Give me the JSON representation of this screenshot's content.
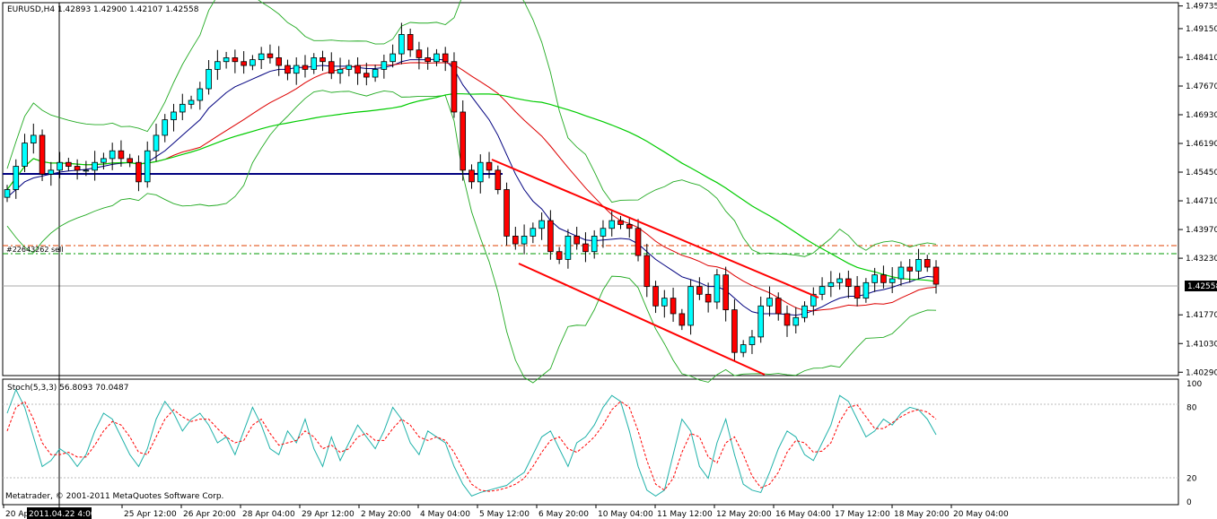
{
  "window": {
    "symbol_header": "EURUSD,H4  1.42893 1.42900 1.42107 1.42558",
    "stoch_header": "Stoch(5,3,3) 56.8093 70.0487",
    "copyright": "Metatrader, © 2001-2011 MetaQuotes Software Corp.",
    "order_label": "#22643262 sell",
    "current_time_label": "2011.04.22 4:00"
  },
  "colors": {
    "bull": "#00ffff",
    "bear": "#ff0000",
    "ma_fast": "#00007f",
    "ma_mid": "#dd0000",
    "ma_slow": "#00cc00",
    "bands": "#22aa22",
    "channel": "#ff0000",
    "support_line": "#000080",
    "stoch_main": "#20b2aa",
    "stoch_signal": "#ff0000"
  },
  "chart_data": [
    {
      "type": "candlestick",
      "ylim": [
        1.4025,
        1.4975
      ],
      "y_ticks": [
        "1.49735",
        "1.49150",
        "1.48410",
        "1.47670",
        "1.46930",
        "1.46190",
        "1.45450",
        "1.44710",
        "1.43970",
        "1.43230",
        "1.42558",
        "1.41770",
        "1.41030",
        "1.40290"
      ],
      "current_price": "1.42558",
      "x_tick_labels": [
        "20 Apr 2011",
        "22 Apr 04:00",
        "25 Apr 12:00",
        "26 Apr 20:00",
        "28 Apr 04:00",
        "29 Apr 12:00",
        "2 May 20:00",
        "4 May 04:00",
        "5 May 12:00",
        "6 May 20:00",
        "10 May 04:00",
        "11 May 12:00",
        "12 May 20:00",
        "16 May 04:00",
        "17 May 12:00",
        "18 May 20:00",
        "20 May 04:00"
      ],
      "closes": [
        1.45,
        1.456,
        1.462,
        1.464,
        1.454,
        1.455,
        1.457,
        1.456,
        1.455,
        1.455,
        1.457,
        1.458,
        1.46,
        1.458,
        1.457,
        1.452,
        1.46,
        1.464,
        1.468,
        1.47,
        1.472,
        1.473,
        1.476,
        1.481,
        1.483,
        1.484,
        1.483,
        1.482,
        1.4835,
        1.485,
        1.484,
        1.482,
        1.48,
        1.482,
        1.481,
        1.484,
        1.483,
        1.48,
        1.481,
        1.482,
        1.48,
        1.479,
        1.481,
        1.483,
        1.485,
        1.49,
        1.486,
        1.484,
        1.483,
        1.485,
        1.483,
        1.47,
        1.455,
        1.452,
        1.457,
        1.455,
        1.45,
        1.438,
        1.436,
        1.438,
        1.44,
        1.442,
        1.434,
        1.432,
        1.438,
        1.436,
        1.434,
        1.438,
        1.44,
        1.442,
        1.441,
        1.44,
        1.433,
        1.425,
        1.42,
        1.422,
        1.418,
        1.415,
        1.425,
        1.423,
        1.421,
        1.428,
        1.419,
        1.408,
        1.41,
        1.412,
        1.42,
        1.422,
        1.418,
        1.415,
        1.417,
        1.42,
        1.423,
        1.425,
        1.426,
        1.427,
        1.425,
        1.422,
        1.426,
        1.428,
        1.426,
        1.427,
        1.43,
        1.429,
        1.432,
        1.43,
        1.4256
      ],
      "ma_fast": [
        1.448,
        1.45,
        1.452,
        1.453,
        1.4535,
        1.454,
        1.4545,
        1.4548,
        1.455,
        1.4552,
        1.4556,
        1.456,
        1.4565,
        1.4568,
        1.457,
        1.4565,
        1.457,
        1.4585,
        1.46,
        1.462,
        1.464,
        1.466,
        1.468,
        1.471,
        1.473,
        1.475,
        1.4765,
        1.4775,
        1.4785,
        1.4795,
        1.4805,
        1.481,
        1.481,
        1.4815,
        1.4815,
        1.4818,
        1.482,
        1.4818,
        1.4818,
        1.4818,
        1.4815,
        1.4812,
        1.4812,
        1.4815,
        1.482,
        1.483,
        1.4835,
        1.4835,
        1.4835,
        1.4836,
        1.4834,
        1.481,
        1.477,
        1.474,
        1.471,
        1.468,
        1.464,
        1.459,
        1.454,
        1.45,
        1.447,
        1.445,
        1.442,
        1.44,
        1.439,
        1.438,
        1.437,
        1.4368,
        1.437,
        1.4372,
        1.4374,
        1.4372,
        1.436,
        1.434,
        1.432,
        1.4305,
        1.429,
        1.4275,
        1.4268,
        1.426,
        1.425,
        1.425,
        1.424,
        1.422,
        1.42,
        1.4185,
        1.418,
        1.418,
        1.418,
        1.4178,
        1.4176,
        1.418,
        1.4188,
        1.4198,
        1.421,
        1.422,
        1.4225,
        1.4225,
        1.423,
        1.4238,
        1.4242,
        1.4248,
        1.4256,
        1.4262,
        1.427,
        1.4276,
        1.4274
      ]
    },
    {
      "type": "line",
      "title": "Stoch(5,3,3) 56.8093 70.0487",
      "ylim": [
        0,
        100
      ],
      "levels": [
        20,
        80
      ],
      "y_ticks": [
        "100",
        "80",
        "20",
        "0"
      ],
      "series": [
        {
          "values": [
            75,
            95,
            80,
            55,
            30,
            35,
            45,
            40,
            30,
            40,
            60,
            75,
            70,
            55,
            40,
            30,
            45,
            70,
            85,
            75,
            60,
            70,
            75,
            65,
            50,
            55,
            40,
            60,
            80,
            65,
            45,
            40,
            60,
            50,
            70,
            45,
            30,
            55,
            35,
            50,
            65,
            55,
            45,
            60,
            80,
            70,
            50,
            40,
            60,
            55,
            50,
            30,
            15,
            5,
            8,
            10,
            12,
            14,
            20,
            25,
            40,
            55,
            60,
            45,
            30,
            50,
            55,
            65,
            80,
            90,
            85,
            60,
            30,
            10,
            5,
            10,
            40,
            70,
            60,
            30,
            20,
            50,
            70,
            40,
            15,
            10,
            8,
            25,
            45,
            60,
            55,
            40,
            35,
            50,
            65,
            90,
            85,
            70,
            55,
            60,
            70,
            65,
            75,
            80,
            78,
            70,
            56.8
          ]
        },
        {
          "values": [
            60,
            80,
            85,
            70,
            50,
            40,
            40,
            42,
            38,
            38,
            48,
            60,
            68,
            65,
            55,
            42,
            40,
            55,
            70,
            78,
            72,
            68,
            70,
            70,
            62,
            55,
            50,
            52,
            65,
            70,
            58,
            48,
            50,
            52,
            60,
            55,
            45,
            48,
            42,
            45,
            55,
            58,
            52,
            52,
            62,
            70,
            65,
            55,
            52,
            55,
            52,
            42,
            28,
            15,
            10,
            9,
            10,
            12,
            15,
            20,
            30,
            42,
            52,
            55,
            45,
            42,
            48,
            55,
            65,
            78,
            85,
            80,
            60,
            35,
            15,
            10,
            20,
            42,
            58,
            55,
            38,
            33,
            50,
            55,
            40,
            22,
            12,
            15,
            25,
            42,
            52,
            50,
            42,
            43,
            50,
            68,
            80,
            82,
            72,
            62,
            62,
            67,
            72,
            76,
            78,
            76,
            70.0
          ]
        }
      ]
    }
  ]
}
